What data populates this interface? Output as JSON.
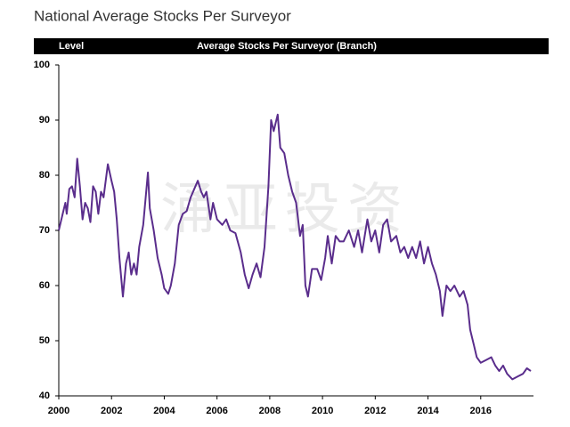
{
  "chart_data": {
    "type": "line",
    "title": "National Average Stocks Per Surveyor",
    "y_label": "Level",
    "watermark": "涌亚投资",
    "xlim": [
      2000,
      2018
    ],
    "xticks": [
      2000,
      2002,
      2004,
      2006,
      2008,
      2010,
      2012,
      2014,
      2016
    ],
    "ylim": [
      40,
      100
    ],
    "yticks": [
      40,
      50,
      60,
      70,
      80,
      90,
      100
    ],
    "grid": false,
    "x": [
      2000.0,
      2000.15,
      2000.25,
      2000.3,
      2000.4,
      2000.5,
      2000.6,
      2000.7,
      2000.8,
      2000.9,
      2001.0,
      2001.1,
      2001.2,
      2001.3,
      2001.4,
      2001.5,
      2001.6,
      2001.7,
      2001.86,
      2002.0,
      2002.1,
      2002.2,
      2002.3,
      2002.43,
      2002.55,
      2002.65,
      2002.75,
      2002.85,
      2002.95,
      2003.05,
      2003.2,
      2003.38,
      2003.45,
      2003.6,
      2003.75,
      2003.9,
      2004.0,
      2004.15,
      2004.25,
      2004.4,
      2004.55,
      2004.7,
      2004.85,
      2005.0,
      2005.27,
      2005.4,
      2005.5,
      2005.6,
      2005.75,
      2005.85,
      2006.0,
      2006.2,
      2006.35,
      2006.5,
      2006.7,
      2006.9,
      2007.05,
      2007.2,
      2007.35,
      2007.5,
      2007.65,
      2007.8,
      2007.95,
      2008.05,
      2008.15,
      2008.3,
      2008.4,
      2008.55,
      2008.7,
      2008.85,
      2009.0,
      2009.15,
      2009.25,
      2009.35,
      2009.45,
      2009.6,
      2009.8,
      2009.95,
      2010.1,
      2010.2,
      2010.35,
      2010.5,
      2010.65,
      2010.8,
      2011.0,
      2011.2,
      2011.35,
      2011.5,
      2011.7,
      2011.85,
      2012.0,
      2012.15,
      2012.3,
      2012.45,
      2012.6,
      2012.8,
      2012.95,
      2013.1,
      2013.25,
      2013.4,
      2013.55,
      2013.7,
      2013.85,
      2014.0,
      2014.15,
      2014.3,
      2014.45,
      2014.55,
      2014.7,
      2014.85,
      2015.0,
      2015.2,
      2015.35,
      2015.5,
      2015.6,
      2015.75,
      2015.85,
      2016.0,
      2016.2,
      2016.4,
      2016.55,
      2016.7,
      2016.85,
      2017.0,
      2017.2,
      2017.4,
      2017.6,
      2017.75,
      2017.9
    ],
    "series": [
      {
        "name": "Average Stocks Per Surveyor (Branch)",
        "color": "#5a2d8c",
        "values": [
          70,
          73,
          75,
          73,
          77.5,
          78,
          76,
          83,
          78,
          72,
          75,
          74,
          71.5,
          78,
          77,
          73,
          77,
          76,
          82,
          79,
          77,
          72,
          65,
          58,
          64,
          66,
          62,
          64,
          62,
          67,
          71,
          80.5,
          74,
          70,
          65,
          62,
          59.5,
          58.5,
          60,
          64,
          71,
          73,
          73.5,
          76,
          79,
          77,
          76,
          77,
          72,
          75,
          72,
          71,
          72,
          70,
          69.5,
          66,
          62,
          59.5,
          62,
          64,
          61.5,
          67,
          78,
          90,
          88,
          91,
          85,
          84,
          80,
          77,
          75,
          69,
          71,
          60,
          58,
          63,
          63,
          61,
          65,
          69,
          64,
          69,
          68,
          68,
          70,
          67,
          70,
          66,
          72,
          68,
          70,
          66,
          71,
          72,
          68,
          69,
          66,
          67,
          65,
          67,
          65,
          68,
          64,
          67,
          64,
          62,
          59,
          54.5,
          60,
          59,
          60,
          58,
          59,
          56.5,
          52,
          49,
          47,
          46,
          46.5,
          47,
          45.5,
          44.5,
          45.5,
          44,
          43,
          43.5,
          44,
          45,
          44.5
        ]
      }
    ]
  }
}
